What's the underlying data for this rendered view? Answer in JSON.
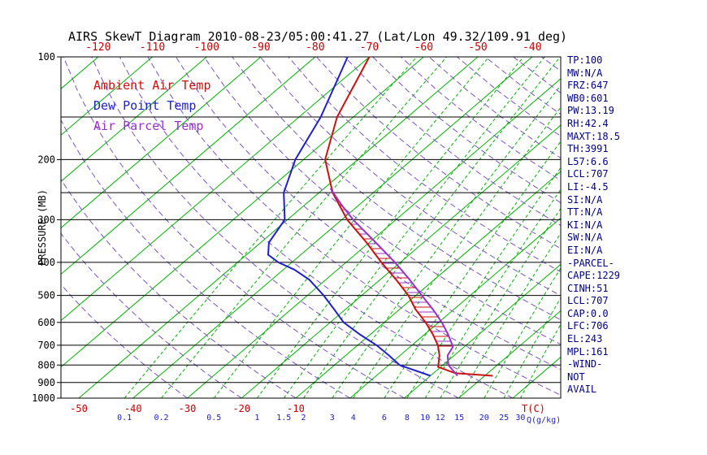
{
  "title": "AIRS SkewT Diagram 2010-08-23/05:00:41.27 (Lat/Lon 49.32/109.91 deg)",
  "colors": {
    "isotherm": "#00b400",
    "mixing": "#00b400",
    "dry_adiabat": "#7b52c8",
    "pressure_line": "#000000",
    "ambient": "#cc1111",
    "dewpoint": "#2020cc",
    "parcel": "#9932cc",
    "top_labels": "#cc0000",
    "bottom_temp_labels": "#cc0000",
    "mixing_labels": "#2222cc",
    "stats_text": "#00008b"
  },
  "chart_data": {
    "type": "line",
    "title": "AIRS SkewT Diagram 2010-08-23/05:00:41.27 (Lat/Lon 49.32/109.91 deg)",
    "x_axis": {
      "label": "T(C)",
      "unit": "deg C (skewed)",
      "top_labels": [
        -120,
        -110,
        -100,
        -90,
        -80,
        -70,
        -60,
        -50,
        -40
      ],
      "bottom_labels": [
        -50,
        -40,
        -30,
        -20,
        -10
      ]
    },
    "mixing_ratio_axis": {
      "label": "Q(g/kg)",
      "values": [
        0.1,
        0.2,
        0.5,
        1,
        1.5,
        2,
        3,
        4,
        6,
        8,
        10,
        12,
        15,
        20,
        25,
        30
      ]
    },
    "y_axis": {
      "label": "PRESSURE (MB)",
      "scale": "log",
      "range": [
        100,
        1000
      ],
      "ticks": [
        100,
        200,
        300,
        400,
        500,
        600,
        700,
        800,
        900,
        1000
      ],
      "lines": [
        100,
        150,
        200,
        250,
        300,
        400,
        500,
        600,
        700,
        800,
        900,
        1000
      ]
    },
    "legend": [
      {
        "label": "Ambient Air Temp",
        "color": "#cc1111"
      },
      {
        "label": "Dew Point Temp",
        "color": "#2020cc"
      },
      {
        "label": "Air Parcel Temp",
        "color": "#9932cc"
      }
    ],
    "series": [
      {
        "name": "Ambient Air Temp",
        "color": "#cc1111",
        "points": [
          [
            860,
            21.5
          ],
          [
            845,
            14
          ],
          [
            810,
            9.5
          ],
          [
            750,
            7.3
          ],
          [
            700,
            4.8
          ],
          [
            650,
            1.5
          ],
          [
            600,
            -2.4
          ],
          [
            550,
            -7
          ],
          [
            500,
            -11.4
          ],
          [
            450,
            -17
          ],
          [
            400,
            -23.5
          ],
          [
            350,
            -30.5
          ],
          [
            300,
            -39
          ],
          [
            250,
            -47.5
          ],
          [
            200,
            -56
          ],
          [
            150,
            -63
          ],
          [
            100,
            -70
          ]
        ]
      },
      {
        "name": "Dew Point Temp",
        "color": "#2020cc",
        "points": [
          [
            860,
            10
          ],
          [
            800,
            2
          ],
          [
            750,
            -2
          ],
          [
            700,
            -6.5
          ],
          [
            650,
            -12
          ],
          [
            600,
            -17.5
          ],
          [
            550,
            -22
          ],
          [
            500,
            -27
          ],
          [
            450,
            -33
          ],
          [
            420,
            -38
          ],
          [
            400,
            -42.5
          ],
          [
            380,
            -46
          ],
          [
            350,
            -48.5
          ],
          [
            300,
            -50.5
          ],
          [
            250,
            -56.5
          ],
          [
            200,
            -61.5
          ],
          [
            150,
            -66
          ],
          [
            100,
            -74
          ]
        ]
      },
      {
        "name": "Air Parcel Temp",
        "color": "#9932cc",
        "points": [
          [
            860,
            15
          ],
          [
            800,
            11
          ],
          [
            750,
            8.8
          ],
          [
            707,
            7.9
          ],
          [
            650,
            4.3
          ],
          [
            600,
            0.6
          ],
          [
            550,
            -3.8
          ],
          [
            500,
            -8.9
          ],
          [
            450,
            -14.5
          ],
          [
            400,
            -21
          ],
          [
            350,
            -28.8
          ],
          [
            300,
            -37.9
          ],
          [
            270,
            -43.5
          ],
          [
            243,
            -48.8
          ]
        ]
      }
    ],
    "cape_region": {
      "lfc_p": 706,
      "el_p": 243
    }
  },
  "stats_panel": {
    "lines": [
      "TP:100",
      "MW:N/A",
      "FRZ:647",
      "WB0:601",
      "PW:13.19",
      "RH:42.4",
      "MAXT:18.5",
      "TH:3991",
      "L57:6.6",
      "LCL:707",
      "LI:-4.5",
      "SI:N/A",
      "TT:N/A",
      "KI:N/A",
      "SW:N/A",
      "EI:N/A",
      "-PARCEL-",
      "CAPE:1229",
      "CINH:51",
      "LCL:707",
      "CAP:0.0",
      "LFC:706",
      "EL:243",
      "MPL:161",
      "-WIND-",
      "NOT",
      "AVAIL"
    ]
  }
}
